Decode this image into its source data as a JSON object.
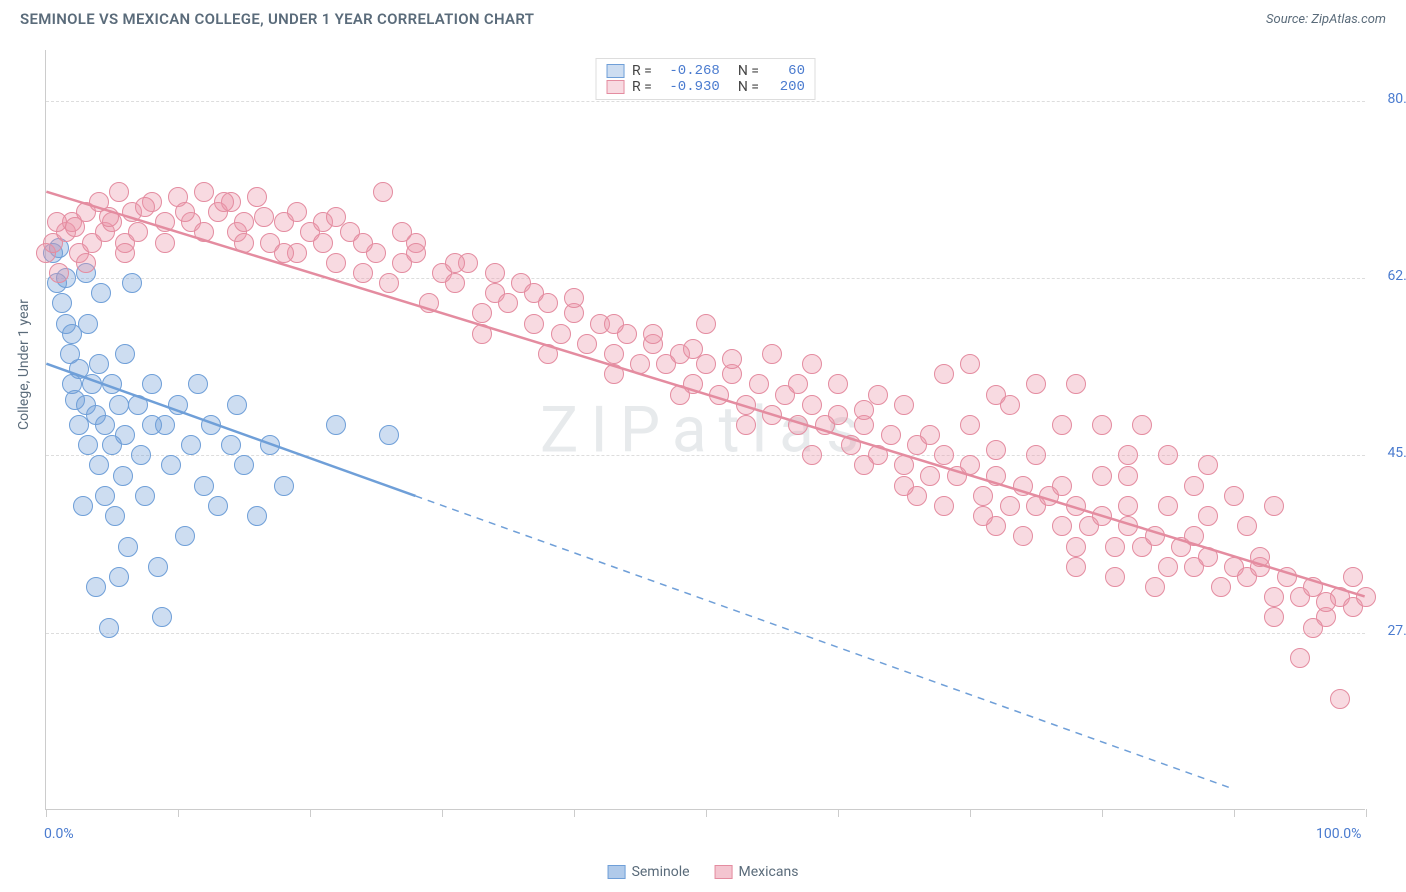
{
  "header": {
    "title": "SEMINOLE VS MEXICAN COLLEGE, UNDER 1 YEAR CORRELATION CHART",
    "source_label": "Source: ZipAtlas.com"
  },
  "watermark": "ZIPatlas",
  "chart": {
    "type": "scatter",
    "y_axis_label": "College, Under 1 year",
    "background_color": "#ffffff",
    "grid_color": "#dddddd",
    "axis_color": "#cccccc",
    "text_color": "#5a6b7a",
    "tick_value_color": "#4a7bcf",
    "xlim": [
      0,
      100
    ],
    "ylim": [
      10,
      85
    ],
    "x_ticks": [
      0,
      10,
      20,
      30,
      40,
      50,
      60,
      70,
      80,
      90,
      100
    ],
    "x_tick_labels": {
      "0": "0.0%",
      "100": "100.0%"
    },
    "y_gridlines": [
      27.5,
      45.0,
      62.5,
      80.0
    ],
    "y_tick_labels": {
      "27.5": "27.5%",
      "45.0": "45.0%",
      "62.5": "62.5%",
      "80.0": "80.0%"
    },
    "marker_radius": 10,
    "marker_opacity": 0.55,
    "line_width": 2.5,
    "series": [
      {
        "name": "Seminole",
        "color": "#6f9fd8",
        "fill": "rgba(111,159,216,0.35)",
        "stroke": "#6f9fd8",
        "R": "-0.268",
        "N": "60",
        "trend": {
          "start": [
            0,
            54
          ],
          "solid_until_x": 28,
          "end": [
            90,
            12
          ],
          "dash_after": true
        },
        "points": [
          [
            0.5,
            65
          ],
          [
            0.8,
            62
          ],
          [
            1,
            65.5
          ],
          [
            1.2,
            60
          ],
          [
            1.5,
            62.5
          ],
          [
            1.5,
            58
          ],
          [
            1.8,
            55
          ],
          [
            2,
            57
          ],
          [
            2,
            52
          ],
          [
            2.2,
            50.5
          ],
          [
            2.5,
            53.5
          ],
          [
            2.5,
            48
          ],
          [
            3,
            63
          ],
          [
            3,
            50
          ],
          [
            3.2,
            58
          ],
          [
            3.2,
            46
          ],
          [
            3.5,
            52
          ],
          [
            3.8,
            49
          ],
          [
            4,
            54
          ],
          [
            4,
            44
          ],
          [
            4.2,
            61
          ],
          [
            4.5,
            48
          ],
          [
            4.5,
            41
          ],
          [
            5,
            52
          ],
          [
            5,
            46
          ],
          [
            5.2,
            39
          ],
          [
            5.5,
            50
          ],
          [
            5.8,
            43
          ],
          [
            6,
            55
          ],
          [
            6,
            47
          ],
          [
            6.2,
            36
          ],
          [
            6.5,
            62
          ],
          [
            7,
            50
          ],
          [
            7.2,
            45
          ],
          [
            7.5,
            41
          ],
          [
            8,
            48
          ],
          [
            8,
            52
          ],
          [
            8.5,
            34
          ],
          [
            9,
            48
          ],
          [
            9.5,
            44
          ],
          [
            10,
            50
          ],
          [
            10.5,
            37
          ],
          [
            11,
            46
          ],
          [
            11.5,
            52
          ],
          [
            12,
            42
          ],
          [
            12.5,
            48
          ],
          [
            13,
            40
          ],
          [
            14,
            46
          ],
          [
            14.5,
            50
          ],
          [
            15,
            44
          ],
          [
            16,
            39
          ],
          [
            17,
            46
          ],
          [
            18,
            42
          ],
          [
            22,
            48
          ],
          [
            26,
            47
          ],
          [
            4.8,
            28
          ],
          [
            8.8,
            29
          ],
          [
            3.8,
            32
          ],
          [
            5.5,
            33
          ],
          [
            2.8,
            40
          ]
        ]
      },
      {
        "name": "Mexicans",
        "color": "#e48ca0",
        "fill": "rgba(235,150,170,0.35)",
        "stroke": "#e48ca0",
        "R": "-0.930",
        "N": "200",
        "trend": {
          "start": [
            0,
            71
          ],
          "solid_until_x": 100,
          "end": [
            100,
            31
          ],
          "dash_after": false
        },
        "points": [
          [
            0,
            65
          ],
          [
            0.5,
            66
          ],
          [
            1,
            63
          ],
          [
            1.5,
            67
          ],
          [
            2,
            68
          ],
          [
            2.5,
            65
          ],
          [
            3,
            69
          ],
          [
            3.5,
            66
          ],
          [
            4,
            70
          ],
          [
            4.5,
            67
          ],
          [
            5,
            68
          ],
          [
            5.5,
            71
          ],
          [
            6,
            66
          ],
          [
            6.5,
            69
          ],
          [
            7,
            67
          ],
          [
            8,
            70
          ],
          [
            9,
            68
          ],
          [
            10,
            70.5
          ],
          [
            11,
            68
          ],
          [
            12,
            71
          ],
          [
            13,
            69
          ],
          [
            14,
            70
          ],
          [
            14.5,
            67
          ],
          [
            15,
            68
          ],
          [
            16,
            70.5
          ],
          [
            17,
            66
          ],
          [
            18,
            68
          ],
          [
            19,
            65
          ],
          [
            20,
            67
          ],
          [
            21,
            66
          ],
          [
            22,
            64
          ],
          [
            23,
            67
          ],
          [
            24,
            63
          ],
          [
            25,
            65
          ],
          [
            25.5,
            71
          ],
          [
            26,
            62
          ],
          [
            27,
            64
          ],
          [
            28,
            66
          ],
          [
            29,
            60
          ],
          [
            30,
            63
          ],
          [
            31,
            62
          ],
          [
            32,
            64
          ],
          [
            33,
            59
          ],
          [
            34,
            61
          ],
          [
            35,
            60
          ],
          [
            36,
            62
          ],
          [
            37,
            58
          ],
          [
            38,
            60
          ],
          [
            39,
            57
          ],
          [
            40,
            59
          ],
          [
            41,
            56
          ],
          [
            42,
            58
          ],
          [
            43,
            55
          ],
          [
            44,
            57
          ],
          [
            45,
            54
          ],
          [
            46,
            56
          ],
          [
            47,
            54
          ],
          [
            48,
            55
          ],
          [
            49,
            52
          ],
          [
            50,
            54
          ],
          [
            51,
            51
          ],
          [
            52,
            53
          ],
          [
            53,
            50
          ],
          [
            54,
            52
          ],
          [
            55,
            49
          ],
          [
            56,
            51
          ],
          [
            57,
            48
          ],
          [
            58,
            50
          ],
          [
            59,
            48
          ],
          [
            60,
            49
          ],
          [
            61,
            46
          ],
          [
            62,
            48
          ],
          [
            63,
            45
          ],
          [
            64,
            47
          ],
          [
            65,
            44
          ],
          [
            66,
            46
          ],
          [
            67,
            43
          ],
          [
            68,
            45
          ],
          [
            69,
            43
          ],
          [
            70,
            44
          ],
          [
            71,
            41
          ],
          [
            72,
            43
          ],
          [
            73,
            40
          ],
          [
            74,
            42
          ],
          [
            75,
            40
          ],
          [
            76,
            41
          ],
          [
            77,
            38
          ],
          [
            78,
            40
          ],
          [
            79,
            38
          ],
          [
            80,
            39
          ],
          [
            81,
            36
          ],
          [
            82,
            38
          ],
          [
            83,
            36
          ],
          [
            84,
            37
          ],
          [
            85,
            34
          ],
          [
            86,
            36
          ],
          [
            87,
            34
          ],
          [
            88,
            35
          ],
          [
            89,
            32
          ],
          [
            90,
            34
          ],
          [
            91,
            33
          ],
          [
            92,
            34
          ],
          [
            93,
            31
          ],
          [
            94,
            33
          ],
          [
            95,
            31
          ],
          [
            96,
            32
          ],
          [
            97,
            29
          ],
          [
            98,
            31
          ],
          [
            99,
            30
          ],
          [
            100,
            31
          ],
          [
            60,
            52
          ],
          [
            65,
            50
          ],
          [
            70,
            48
          ],
          [
            75,
            45
          ],
          [
            80,
            43
          ],
          [
            66,
            41
          ],
          [
            72,
            38
          ],
          [
            78,
            36
          ],
          [
            68,
            53
          ],
          [
            73,
            50
          ],
          [
            82,
            43
          ],
          [
            85,
            40
          ],
          [
            88,
            39
          ],
          [
            91,
            38
          ],
          [
            55,
            55
          ],
          [
            50,
            58
          ],
          [
            58,
            54
          ],
          [
            63,
            51
          ],
          [
            3,
            64
          ],
          [
            6,
            65
          ],
          [
            9,
            66
          ],
          [
            12,
            67
          ],
          [
            15,
            66
          ],
          [
            18,
            65
          ],
          [
            21,
            68
          ],
          [
            24,
            66
          ],
          [
            27,
            67
          ],
          [
            0.8,
            68
          ],
          [
            2.2,
            67.5
          ],
          [
            4.8,
            68.5
          ],
          [
            7.5,
            69.5
          ],
          [
            10.5,
            69
          ],
          [
            13.5,
            70
          ],
          [
            16.5,
            68.5
          ],
          [
            19,
            69
          ],
          [
            22,
            68.5
          ],
          [
            28,
            65
          ],
          [
            31,
            64
          ],
          [
            34,
            63
          ],
          [
            37,
            61
          ],
          [
            40,
            60.5
          ],
          [
            43,
            58
          ],
          [
            46,
            57
          ],
          [
            49,
            55.5
          ],
          [
            52,
            54.5
          ],
          [
            57,
            52
          ],
          [
            62,
            49.5
          ],
          [
            67,
            47
          ],
          [
            72,
            45.5
          ],
          [
            77,
            42
          ],
          [
            82,
            40
          ],
          [
            87,
            37
          ],
          [
            92,
            35
          ],
          [
            97,
            30.5
          ],
          [
            95,
            25
          ],
          [
            98,
            21
          ],
          [
            99,
            33
          ],
          [
            96,
            28
          ],
          [
            93,
            29
          ],
          [
            70,
            54
          ],
          [
            75,
            52
          ],
          [
            80,
            48
          ],
          [
            85,
            45
          ],
          [
            90,
            41
          ],
          [
            62,
            44
          ],
          [
            65,
            42
          ],
          [
            68,
            40
          ],
          [
            71,
            39
          ],
          [
            74,
            37
          ],
          [
            78,
            34
          ],
          [
            81,
            33
          ],
          [
            84,
            32
          ],
          [
            58,
            45
          ],
          [
            53,
            48
          ],
          [
            48,
            51
          ],
          [
            43,
            53
          ],
          [
            38,
            55
          ],
          [
            33,
            57
          ],
          [
            78,
            52
          ],
          [
            83,
            48
          ],
          [
            88,
            44
          ],
          [
            93,
            40
          ],
          [
            72,
            51
          ],
          [
            77,
            48
          ],
          [
            82,
            45
          ],
          [
            87,
            42
          ]
        ]
      }
    ]
  },
  "legend_bottom": [
    {
      "label": "Seminole",
      "fill": "rgba(111,159,216,0.55)",
      "stroke": "#6f9fd8"
    },
    {
      "label": "Mexicans",
      "fill": "rgba(235,150,170,0.55)",
      "stroke": "#e48ca0"
    }
  ]
}
